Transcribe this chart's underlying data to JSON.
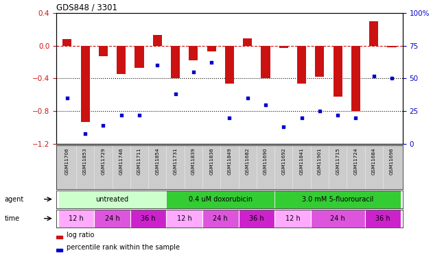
{
  "title": "GDS848 / 3301",
  "samples": [
    "GSM11706",
    "GSM11853",
    "GSM11729",
    "GSM11746",
    "GSM11711",
    "GSM11854",
    "GSM11731",
    "GSM11839",
    "GSM11836",
    "GSM11849",
    "GSM11682",
    "GSM11690",
    "GSM11692",
    "GSM11841",
    "GSM11901",
    "GSM11715",
    "GSM11724",
    "GSM11684",
    "GSM11696"
  ],
  "log_ratio": [
    0.08,
    -0.93,
    -0.13,
    -0.35,
    -0.27,
    0.13,
    -0.4,
    -0.18,
    -0.07,
    -0.46,
    0.09,
    -0.4,
    -0.03,
    -0.46,
    -0.38,
    -0.62,
    -0.8,
    0.3,
    -0.02
  ],
  "percentile_rank": [
    35,
    8,
    14,
    22,
    22,
    60,
    38,
    55,
    62,
    20,
    35,
    30,
    13,
    20,
    25,
    22,
    20,
    52,
    50
  ],
  "ylim_left": [
    -1.2,
    0.4
  ],
  "ylim_right": [
    0,
    100
  ],
  "yticks_left": [
    -1.2,
    -0.8,
    -0.4,
    0.0,
    0.4
  ],
  "yticks_right": [
    0,
    25,
    50,
    75,
    100
  ],
  "agent_groups": [
    {
      "label": "untreated",
      "start": 0,
      "end": 6,
      "color": "#ccffcc"
    },
    {
      "label": "0.4 uM doxorubicin",
      "start": 6,
      "end": 12,
      "color": "#33cc33"
    },
    {
      "label": "3.0 mM 5-fluorouracil",
      "start": 12,
      "end": 19,
      "color": "#33cc33"
    }
  ],
  "time_groups": [
    {
      "label": "12 h",
      "start": 0,
      "end": 2,
      "color": "#ffaaff"
    },
    {
      "label": "24 h",
      "start": 2,
      "end": 4,
      "color": "#dd55dd"
    },
    {
      "label": "36 h",
      "start": 4,
      "end": 6,
      "color": "#cc22cc"
    },
    {
      "label": "12 h",
      "start": 6,
      "end": 8,
      "color": "#ffaaff"
    },
    {
      "label": "24 h",
      "start": 8,
      "end": 10,
      "color": "#dd55dd"
    },
    {
      "label": "36 h",
      "start": 10,
      "end": 12,
      "color": "#cc22cc"
    },
    {
      "label": "12 h",
      "start": 12,
      "end": 14,
      "color": "#ffaaff"
    },
    {
      "label": "24 h",
      "start": 14,
      "end": 17,
      "color": "#dd55dd"
    },
    {
      "label": "36 h",
      "start": 17,
      "end": 19,
      "color": "#cc22cc"
    }
  ],
  "bar_color": "#cc1111",
  "scatter_color": "#0000cc",
  "dashed_color": "#cc1111",
  "dotted_color": "#000000",
  "label_area_bg": "#cccccc",
  "fig_width": 6.31,
  "fig_height": 3.75,
  "dpi": 100
}
